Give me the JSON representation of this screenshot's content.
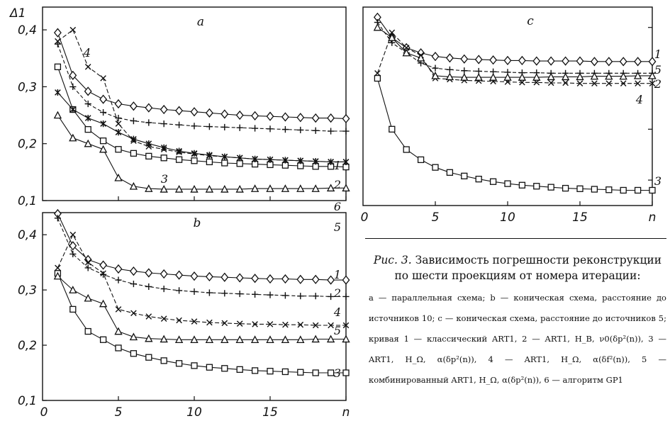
{
  "caption": {
    "title_prefix": "Рис. 3.",
    "title_text": "Зависимость погрешности реконструкции по шести проекциям от номера итерации:",
    "legend": "a — параллельная схема; b — коническая схема, расстояние до источников 10; c — коническая схема, расстояние до источников 5; кривая 1 — классический ART1, 2 — ART1, H_B, ν0(δp²(n)), 3 — ART1, H_Ω, α(δp²(n)), 4 — ART1, H_Ω, α(δf²(n)), 5 — комбинированный ART1, H_Ω, α(δp²(n)), 6 — алгоритм GP1"
  },
  "chart_data": [
    {
      "type": "line",
      "panel_label": "a",
      "ylabel": "Δ1",
      "ylim": [
        0.1,
        0.44
      ],
      "yticks": [
        "0,1",
        "0,2",
        "0,3",
        "0,4"
      ],
      "xlim": [
        0,
        20
      ],
      "x": [
        1,
        2,
        3,
        4,
        5,
        6,
        7,
        8,
        9,
        10,
        11,
        12,
        13,
        14,
        15,
        16,
        17,
        18,
        19,
        20
      ],
      "series": [
        {
          "name": "1",
          "marker": "diamond",
          "values": [
            0.395,
            0.32,
            0.292,
            0.278,
            0.27,
            0.266,
            0.263,
            0.26,
            0.258,
            0.256,
            0.254,
            0.252,
            0.25,
            0.249,
            0.248,
            0.247,
            0.246,
            0.245,
            0.245,
            0.244
          ]
        },
        {
          "name": "2",
          "marker": "plus",
          "values": [
            0.375,
            0.3,
            0.27,
            0.255,
            0.245,
            0.24,
            0.237,
            0.235,
            0.233,
            0.231,
            0.23,
            0.229,
            0.228,
            0.227,
            0.226,
            0.225,
            0.224,
            0.223,
            0.222,
            0.222
          ]
        },
        {
          "name": "3",
          "marker": "square",
          "values": [
            0.335,
            0.26,
            0.225,
            0.205,
            0.19,
            0.183,
            0.178,
            0.175,
            0.172,
            0.17,
            0.168,
            0.166,
            0.165,
            0.164,
            0.163,
            0.162,
            0.161,
            0.16,
            0.16,
            0.159
          ]
        },
        {
          "name": "4",
          "marker": "x",
          "values": [
            0.38,
            0.4,
            0.335,
            0.315,
            0.235,
            0.205,
            0.195,
            0.19,
            0.185,
            0.182,
            0.179,
            0.177,
            0.175,
            0.173,
            0.172,
            0.171,
            0.17,
            0.169,
            0.168,
            0.168
          ]
        },
        {
          "name": "5",
          "marker": "triangle",
          "values": [
            0.25,
            0.21,
            0.2,
            0.19,
            0.14,
            0.125,
            0.121,
            0.12,
            0.12,
            0.12,
            0.12,
            0.12,
            0.12,
            0.121,
            0.121,
            0.121,
            0.121,
            0.121,
            0.122,
            0.122
          ]
        },
        {
          "name": "6",
          "marker": "star",
          "values": [
            0.29,
            0.26,
            0.245,
            0.235,
            0.22,
            0.208,
            0.2,
            0.193,
            0.187,
            0.183,
            0.18,
            0.177,
            0.175,
            0.173,
            0.172,
            0.171,
            0.17,
            0.169,
            0.168,
            0.168
          ]
        }
      ]
    },
    {
      "type": "line",
      "panel_label": "b",
      "ylim": [
        0.1,
        0.44
      ],
      "yticks": [
        "0,1",
        "0,2",
        "0,3",
        "0,4"
      ],
      "xlim": [
        0,
        20
      ],
      "xticks": [
        "0",
        "5",
        "10",
        "15",
        "n"
      ],
      "x": [
        1,
        2,
        3,
        4,
        5,
        6,
        7,
        8,
        9,
        10,
        11,
        12,
        13,
        14,
        15,
        16,
        17,
        18,
        19,
        20
      ],
      "series": [
        {
          "name": "1",
          "marker": "diamond",
          "values": [
            0.438,
            0.38,
            0.355,
            0.345,
            0.338,
            0.334,
            0.331,
            0.329,
            0.327,
            0.325,
            0.324,
            0.323,
            0.322,
            0.321,
            0.32,
            0.32,
            0.319,
            0.319,
            0.318,
            0.318
          ]
        },
        {
          "name": "2",
          "marker": "plus",
          "values": [
            0.43,
            0.365,
            0.34,
            0.328,
            0.318,
            0.311,
            0.306,
            0.302,
            0.299,
            0.297,
            0.295,
            0.294,
            0.293,
            0.292,
            0.291,
            0.29,
            0.289,
            0.289,
            0.288,
            0.288
          ]
        },
        {
          "name": "3",
          "marker": "square",
          "values": [
            0.33,
            0.265,
            0.225,
            0.21,
            0.195,
            0.185,
            0.178,
            0.172,
            0.167,
            0.163,
            0.16,
            0.158,
            0.156,
            0.154,
            0.153,
            0.152,
            0.151,
            0.15,
            0.15,
            0.15
          ]
        },
        {
          "name": "4",
          "marker": "x",
          "values": [
            0.34,
            0.4,
            0.35,
            0.33,
            0.265,
            0.258,
            0.252,
            0.248,
            0.245,
            0.243,
            0.241,
            0.24,
            0.239,
            0.238,
            0.238,
            0.237,
            0.237,
            0.236,
            0.236,
            0.236
          ]
        },
        {
          "name": "5",
          "marker": "triangle",
          "values": [
            0.325,
            0.3,
            0.285,
            0.275,
            0.225,
            0.215,
            0.212,
            0.211,
            0.21,
            0.21,
            0.21,
            0.21,
            0.21,
            0.21,
            0.21,
            0.21,
            0.21,
            0.211,
            0.211,
            0.211
          ]
        }
      ]
    },
    {
      "type": "line",
      "panel_label": "c",
      "xlim": [
        0,
        20
      ],
      "xticks": [
        "0",
        "5",
        "10",
        "15",
        "n"
      ],
      "x": [
        1,
        2,
        3,
        4,
        5,
        6,
        7,
        8,
        9,
        10,
        11,
        12,
        13,
        14,
        15,
        16,
        17,
        18,
        19,
        20
      ],
      "series": [
        {
          "name": "1",
          "marker": "diamond",
          "values": [
            0.42,
            0.38,
            0.36,
            0.35,
            0.343,
            0.34,
            0.338,
            0.337,
            0.336,
            0.335,
            0.335,
            0.334,
            0.334,
            0.334,
            0.334,
            0.333,
            0.333,
            0.333,
            0.333,
            0.333
          ]
        },
        {
          "name": "2",
          "marker": "plus",
          "values": [
            0.41,
            0.37,
            0.35,
            0.33,
            0.32,
            0.317,
            0.315,
            0.314,
            0.313,
            0.312,
            0.311,
            0.311,
            0.31,
            0.31,
            0.31,
            0.31,
            0.31,
            0.31,
            0.31,
            0.31
          ]
        },
        {
          "name": "3",
          "marker": "square",
          "values": [
            0.3,
            0.2,
            0.16,
            0.14,
            0.125,
            0.115,
            0.108,
            0.102,
            0.097,
            0.093,
            0.09,
            0.088,
            0.086,
            0.084,
            0.083,
            0.082,
            0.081,
            0.08,
            0.08,
            0.08
          ]
        },
        {
          "name": "4",
          "marker": "x",
          "values": [
            0.31,
            0.39,
            0.36,
            0.345,
            0.3,
            0.298,
            0.296,
            0.295,
            0.294,
            0.293,
            0.292,
            0.292,
            0.291,
            0.291,
            0.29,
            0.29,
            0.29,
            0.29,
            0.29,
            0.29
          ]
        },
        {
          "name": "5",
          "marker": "triangle",
          "values": [
            0.4,
            0.38,
            0.35,
            0.34,
            0.305,
            0.303,
            0.302,
            0.302,
            0.302,
            0.302,
            0.302,
            0.302,
            0.303,
            0.303,
            0.303,
            0.304,
            0.304,
            0.304,
            0.305,
            0.305
          ]
        }
      ]
    }
  ]
}
